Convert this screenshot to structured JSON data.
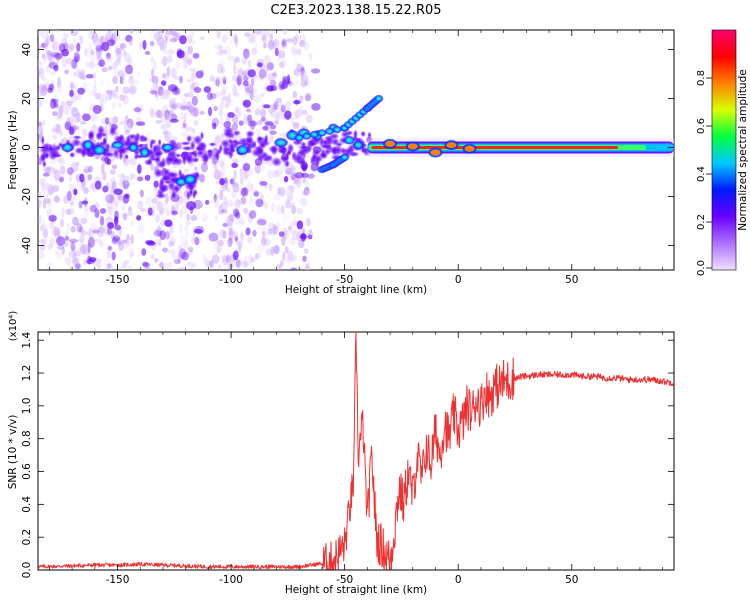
{
  "figure": {
    "title": "C2E3.2023.138.15.22.R05"
  },
  "chart_data": [
    {
      "type": "heatmap",
      "title": "C2E3.2023.138.15.22.R05",
      "xlabel": "Height of straight line (km)",
      "ylabel": "Frequency (Hz)",
      "xlim": [
        -185,
        95
      ],
      "ylim": [
        -50,
        48
      ],
      "x_ticks": [
        -150,
        -100,
        -50,
        0,
        50
      ],
      "y_ticks": [
        -40,
        -20,
        0,
        20,
        40
      ],
      "colorbar": {
        "label": "Normalized spectral amplitude",
        "range": [
          0,
          1
        ],
        "ticks": [
          "0.0",
          "0.2",
          "0.4",
          "0.6",
          "0.8"
        ],
        "colormap": [
          "#f0e0ff",
          "#b070ff",
          "#6a00ff",
          "#0018ff",
          "#00c8ff",
          "#00ff40",
          "#d8ff00",
          "#ff8000",
          "#ff0000",
          "#ff0070"
        ]
      },
      "features": {
        "central_ridge": {
          "x_range": [
            -40,
            95
          ],
          "frequency_hz": 0,
          "peak_amplitude": 0.95
        },
        "diffuse_region": {
          "x_range": [
            -185,
            -65
          ],
          "frequency_range": [
            -50,
            48
          ]
        },
        "upper_branch": {
          "points": [
            [
              -70,
              4
            ],
            [
              -50,
              8
            ],
            [
              -40,
              16
            ],
            [
              -35,
              20
            ]
          ]
        },
        "lower_branch": {
          "points": [
            [
              -60,
              -9
            ],
            [
              -55,
              -7
            ],
            [
              -50,
              -4
            ]
          ]
        }
      },
      "grid": false,
      "legend": "colorbar-right"
    },
    {
      "type": "line",
      "xlabel": "Height of straight line (km)",
      "ylabel": "SNR (10 * v/v)",
      "y_multiplier": "(x10⁴)",
      "xlim": [
        -185,
        95
      ],
      "ylim": [
        0,
        1.45
      ],
      "x_ticks": [
        -150,
        -100,
        -50,
        0,
        50
      ],
      "y_ticks": [
        "0.0",
        "0.2",
        "0.4",
        "0.6",
        "0.8",
        "1.0",
        "1.2",
        "1.4"
      ],
      "line_color": "#ee3030",
      "x": [
        -185,
        -170,
        -160,
        -150,
        -140,
        -130,
        -120,
        -110,
        -100,
        -90,
        -80,
        -70,
        -60,
        -55,
        -50,
        -48,
        -46,
        -45,
        -44,
        -42,
        -40,
        -38,
        -36,
        -34,
        -32,
        -30,
        -28,
        -26,
        -24,
        -22,
        -20,
        -18,
        -16,
        -14,
        -12,
        -10,
        -8,
        -6,
        -4,
        -2,
        0,
        2,
        4,
        6,
        8,
        10,
        12,
        14,
        16,
        18,
        20,
        22,
        24,
        26,
        28,
        30,
        35,
        40,
        45,
        50,
        55,
        60,
        65,
        70,
        75,
        80,
        85,
        90,
        95
      ],
      "y": [
        0.02,
        0.025,
        0.03,
        0.03,
        0.035,
        0.03,
        0.025,
        0.02,
        0.02,
        0.02,
        0.02,
        0.02,
        0.04,
        0.06,
        0.15,
        0.35,
        0.55,
        1.45,
        0.7,
        0.9,
        0.3,
        0.7,
        0.2,
        0.15,
        0.1,
        0.05,
        0.25,
        0.5,
        0.4,
        0.6,
        0.45,
        0.7,
        0.55,
        0.75,
        0.65,
        0.85,
        0.7,
        0.9,
        0.8,
        0.95,
        0.85,
        0.9,
        1.0,
        0.95,
        1.05,
        1.0,
        1.1,
        1.05,
        1.12,
        1.12,
        1.15,
        1.15,
        1.17,
        1.17,
        1.18,
        1.18,
        1.19,
        1.19,
        1.19,
        1.19,
        1.18,
        1.18,
        1.17,
        1.17,
        1.16,
        1.16,
        1.16,
        1.15,
        1.14
      ]
    }
  ]
}
